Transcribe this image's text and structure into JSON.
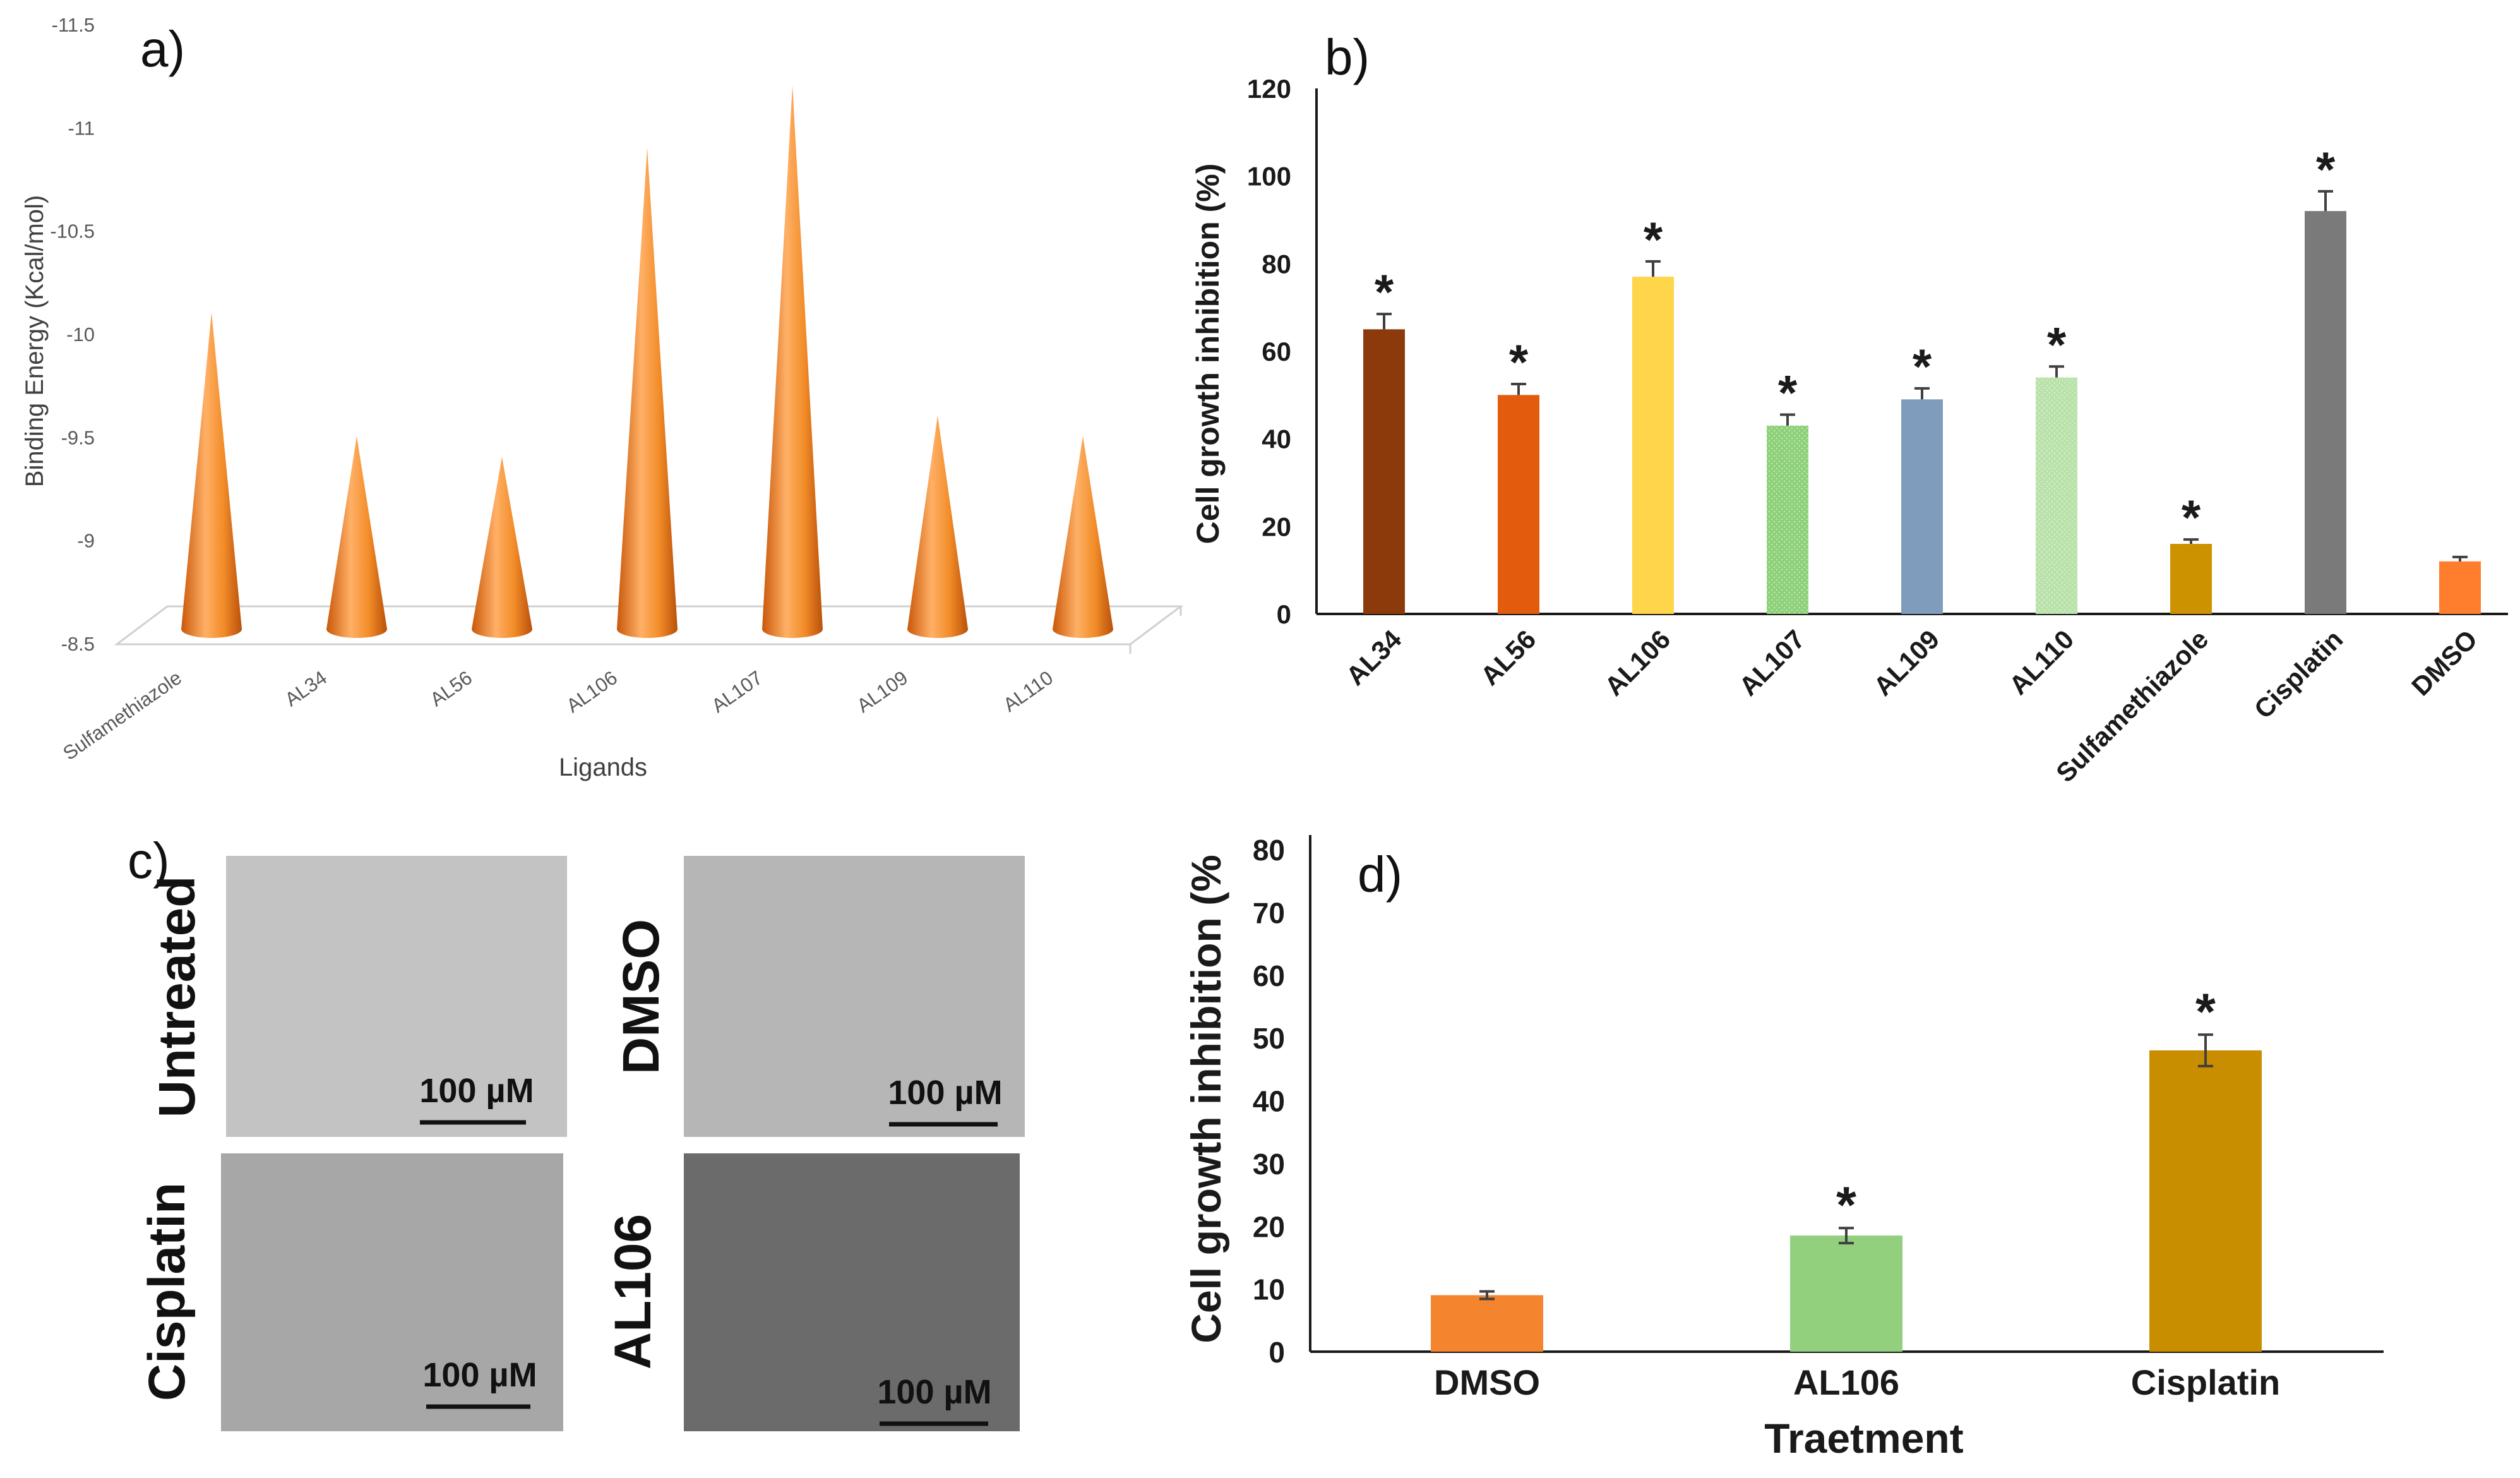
{
  "chart_data": [
    {
      "panel": "a)",
      "type": "bar",
      "style": "3d-cone",
      "xlabel": "Ligands",
      "ylabel": "Binding Energy (Kcal/mol)",
      "ylim": [
        -8.5,
        -11.5
      ],
      "yticks": [
        "-11.5",
        "-11",
        "-10.5",
        "-10",
        "-9.5",
        "-9",
        "-8.5"
      ],
      "categories": [
        "Sulfamethiazole",
        "AL34",
        "AL56",
        "AL106",
        "AL107",
        "AL109",
        "AL110"
      ],
      "values": [
        -10.2,
        -9.6,
        -9.5,
        -11.0,
        -11.3,
        -9.7,
        -9.6
      ],
      "color": "#f28c28"
    },
    {
      "panel": "b)",
      "type": "bar",
      "xlabel": "",
      "ylabel": "Cell growth inhibition (%)",
      "ylim": [
        0,
        120
      ],
      "yticks": [
        "0",
        "20",
        "40",
        "60",
        "80",
        "100",
        "120"
      ],
      "categories": [
        "AL34",
        "AL56",
        "AL106",
        "AL107",
        "AL109",
        "AL110",
        "Sulfamethiazole",
        "Cisplatin",
        "DMSO"
      ],
      "values": [
        65,
        50,
        77,
        43,
        49,
        54,
        16,
        92,
        12
      ],
      "errors": [
        3.5,
        2.5,
        3.5,
        2.5,
        2.5,
        2.5,
        1,
        4.5,
        1
      ],
      "significance": [
        "*",
        "*",
        "*",
        "*",
        "*",
        "*",
        "*",
        "*",
        ""
      ],
      "colors": [
        "#8c3a0c",
        "#e35c0d",
        "#ffd54a",
        "#8fd17a",
        "#7f9cbc",
        "#b9e2aa",
        "#cc9200",
        "#7a7a7a",
        "#ff7e2e"
      ]
    },
    {
      "panel": "d)",
      "type": "bar",
      "xlabel": "Traetment",
      "ylabel": "Cell growth inhibition (%",
      "ylim": [
        0,
        80
      ],
      "yticks": [
        "0",
        "10",
        "20",
        "30",
        "40",
        "50",
        "60",
        "70",
        "80"
      ],
      "categories": [
        "DMSO",
        "AL106",
        "Cisplatin"
      ],
      "values": [
        9,
        18.5,
        48
      ],
      "errors": [
        0.6,
        1.2,
        2.5
      ],
      "significance": [
        "",
        "*",
        "*"
      ],
      "colors": [
        "#f5842e",
        "#92d07e",
        "#c98d00"
      ]
    }
  ],
  "micrographs": {
    "panel": "c)",
    "images": [
      {
        "label": "Untreated",
        "scale_bar": "100 µM",
        "shade": "#c3c3c3"
      },
      {
        "label": "DMSO",
        "scale_bar": "100 µM",
        "shade": "#b6b6b6"
      },
      {
        "label": "Cisplatin",
        "scale_bar": "100 µM",
        "shade": "#a7a7a7"
      },
      {
        "label": "AL106",
        "scale_bar": "100 µM",
        "shade": "#6b6b6b"
      }
    ]
  }
}
